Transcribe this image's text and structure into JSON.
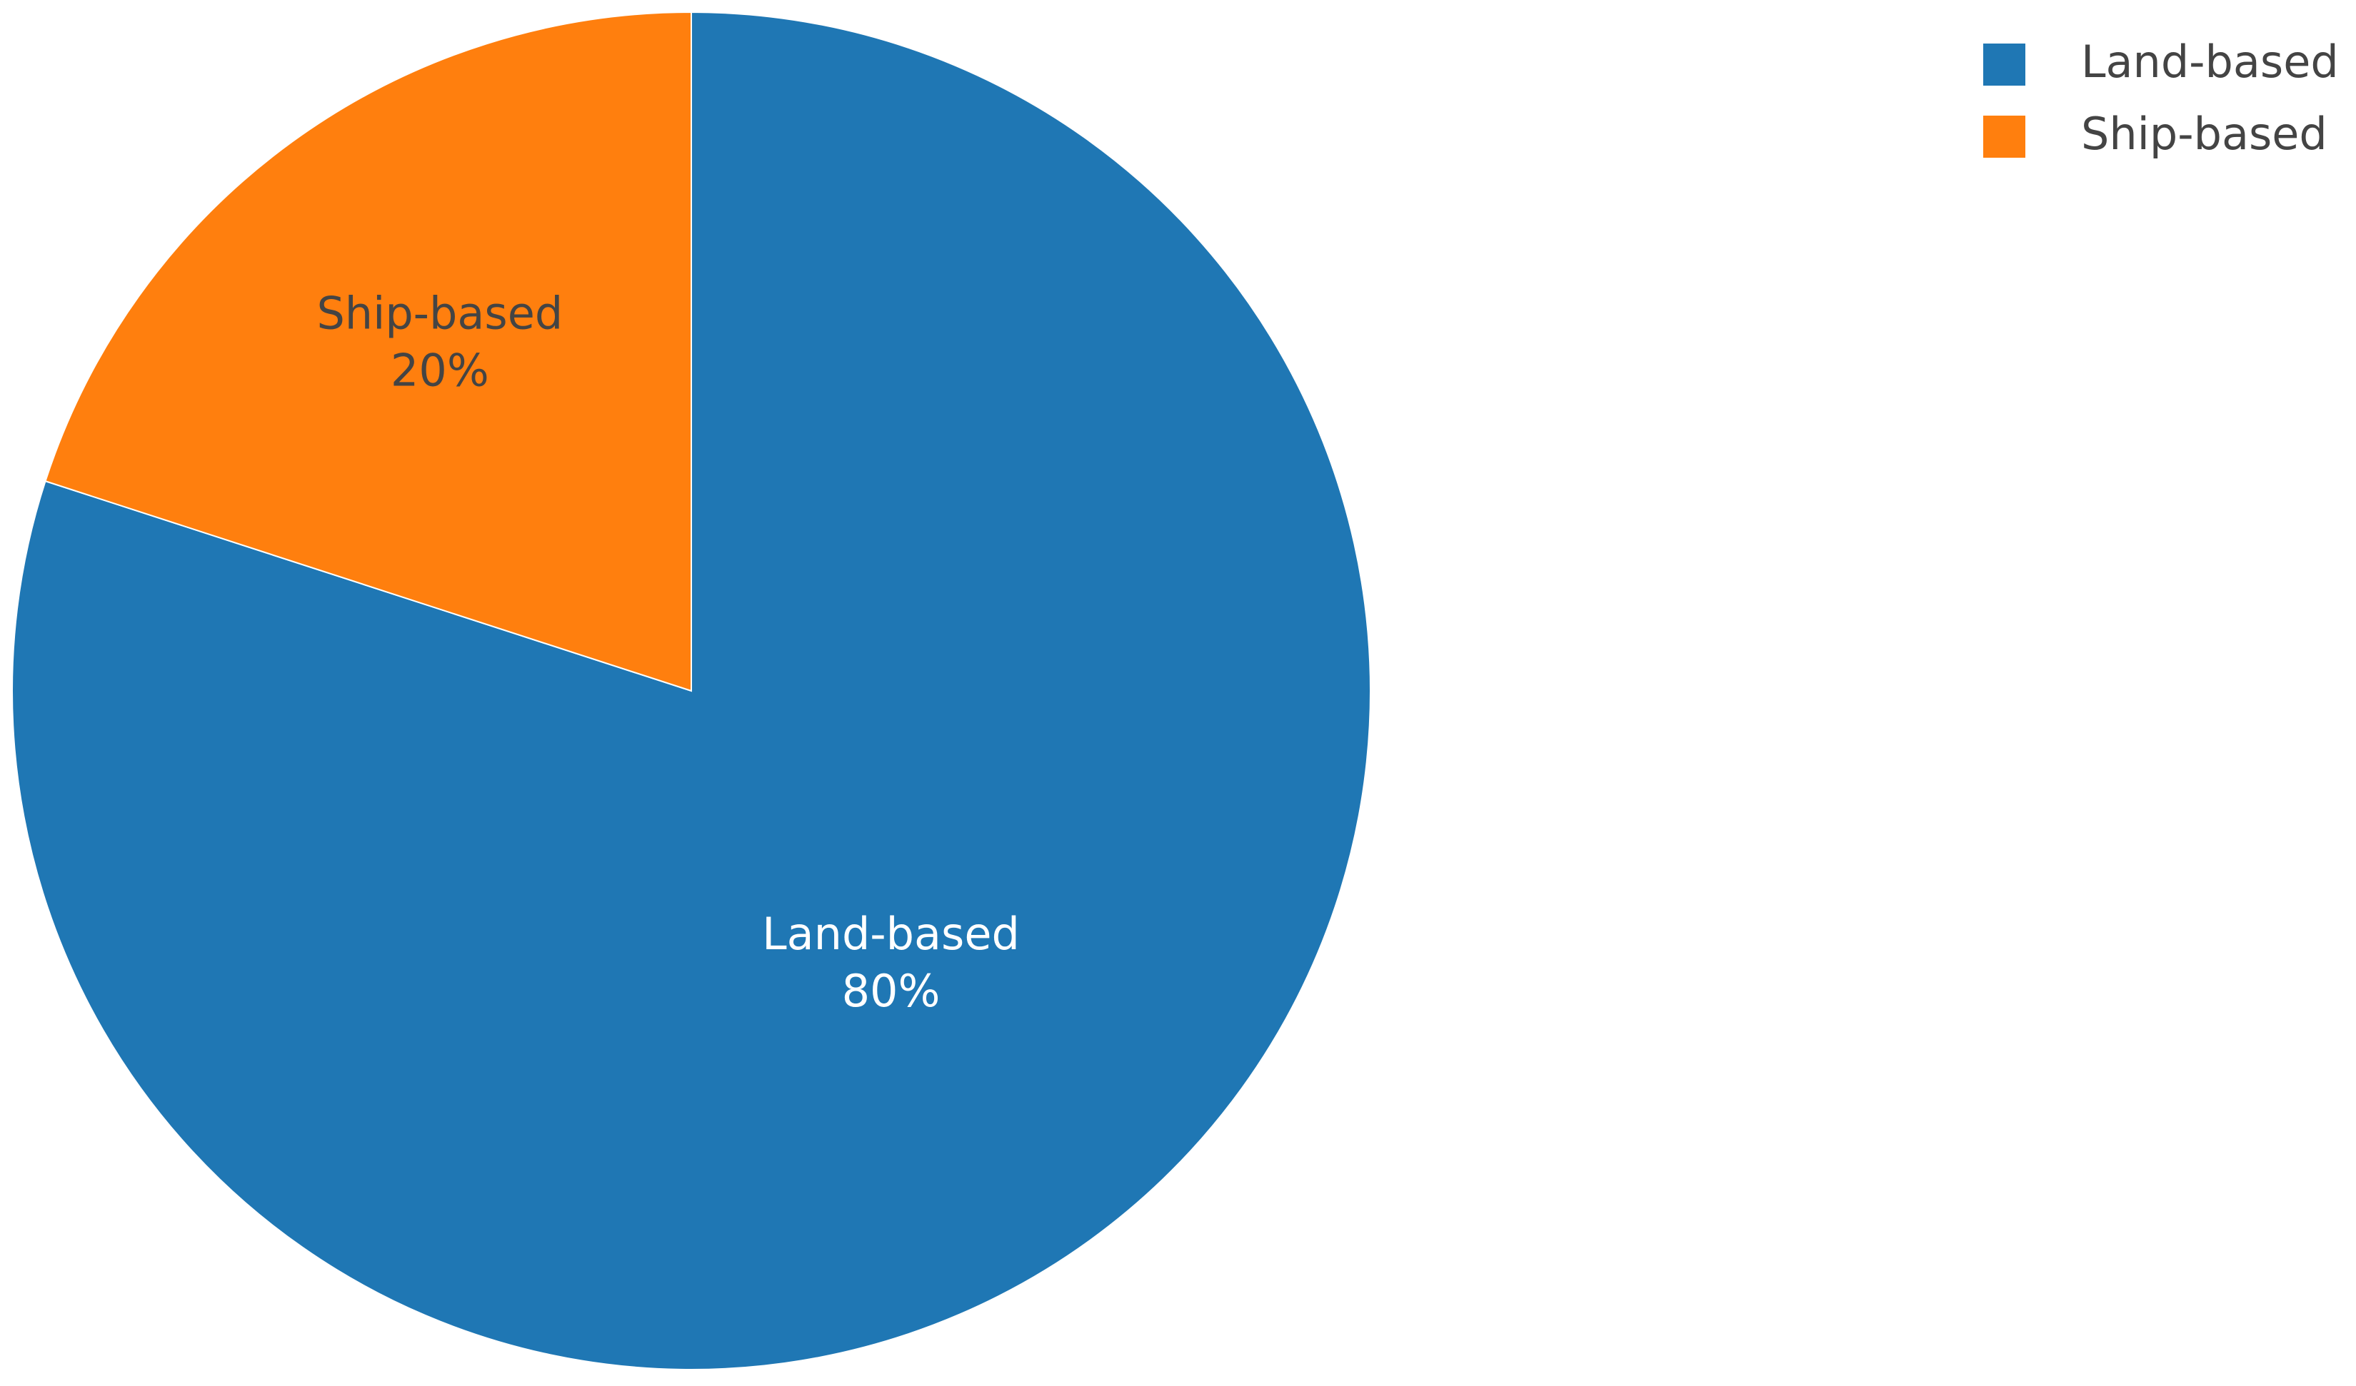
{
  "chart_data": {
    "type": "pie",
    "categories": [
      "Land-based",
      "Ship-based"
    ],
    "values": [
      80,
      20
    ],
    "value_labels": [
      "80%",
      "20%"
    ],
    "colors": [
      "#1f77b4",
      "#ff7f0e"
    ],
    "legend": "top-right"
  }
}
